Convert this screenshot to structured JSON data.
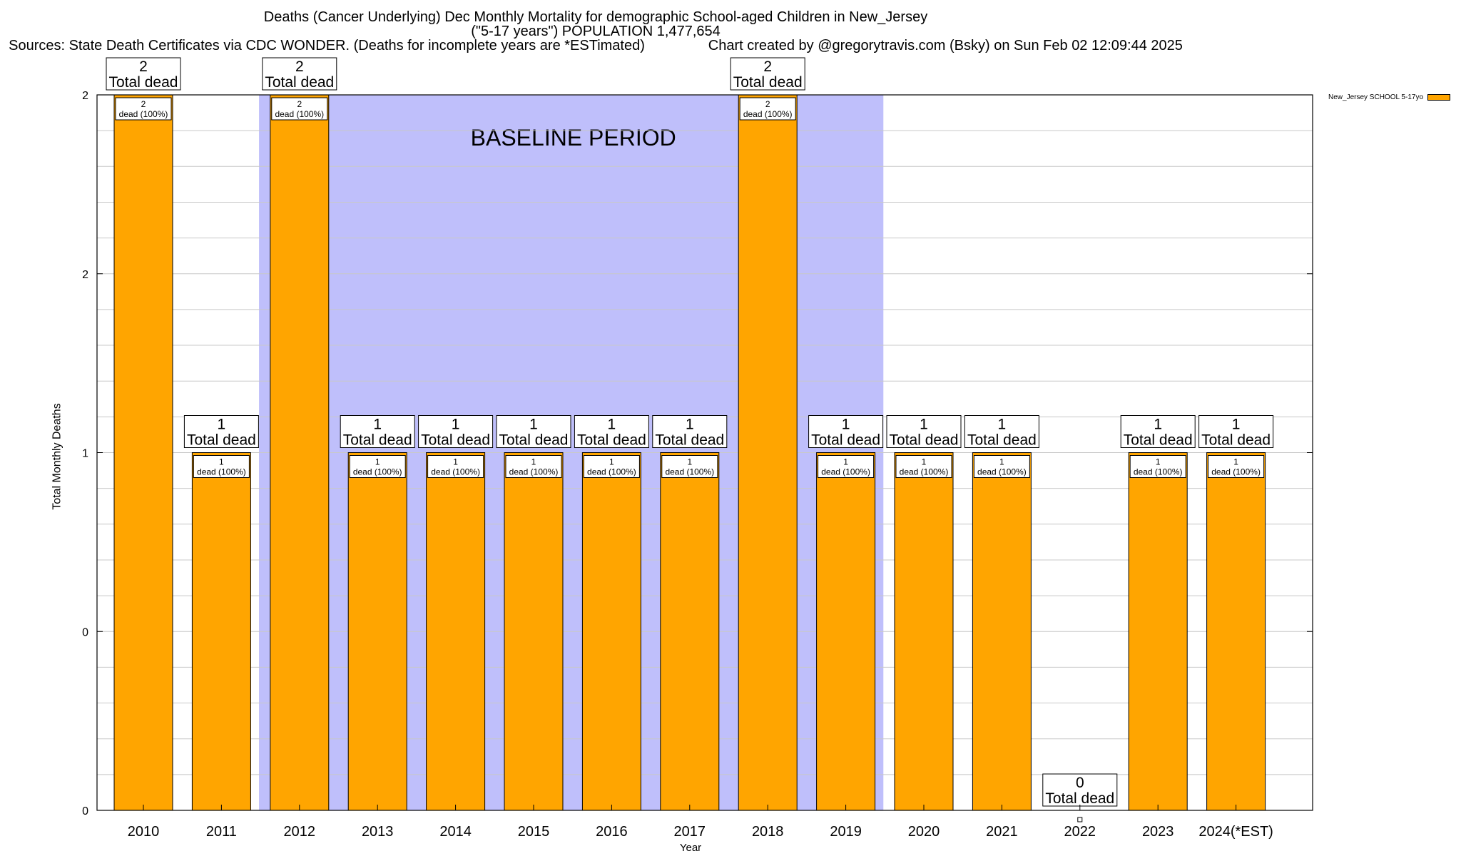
{
  "titles": {
    "line1": "Deaths (Cancer Underlying) Dec Monthly Mortality for demographic School-aged Children in New_Jersey",
    "line2": "(\"5-17 years\") POPULATION 1,477,654",
    "line3": "Sources: State Death Certificates via CDC WONDER. (Deaths for incomplete years are *ESTimated)                Chart created by @gregorytravis.com (Bsky) on Sun Feb 02 12:09:44 2025"
  },
  "colors": {
    "bar": "#FFA500",
    "baseline_band": "#BFBFFB",
    "grid": "#C8C8C8"
  },
  "chart_data": {
    "type": "bar",
    "title": "Deaths (Cancer Underlying) Dec Monthly Mortality for demographic School-aged Children in New_Jersey",
    "xlabel": "Year",
    "ylabel": "Total Monthly Deaths",
    "ylim": [
      0,
      2
    ],
    "yticks": [
      0,
      0.5,
      1,
      1.5,
      2
    ],
    "ytick_labels": [
      "0",
      "0",
      "1",
      "2",
      "2"
    ],
    "grid": true,
    "legend_position": "top-right",
    "categories": [
      "2010",
      "2011",
      "2012",
      "2013",
      "2014",
      "2015",
      "2016",
      "2017",
      "2018",
      "2019",
      "2020",
      "2021",
      "2022",
      "2023",
      "2024(*EST)"
    ],
    "series": [
      {
        "name": "New_Jersey SCHOOL 5-17yo",
        "values": [
          2,
          1,
          2,
          1,
          1,
          1,
          1,
          1,
          2,
          1,
          1,
          1,
          0,
          1,
          1
        ]
      }
    ],
    "total_label_suffix": "Total dead",
    "inner_label_suffix": "dead (100%)",
    "baseline_period": {
      "label": "BASELINE PERIOD",
      "from": "2012",
      "to": "2019"
    }
  }
}
